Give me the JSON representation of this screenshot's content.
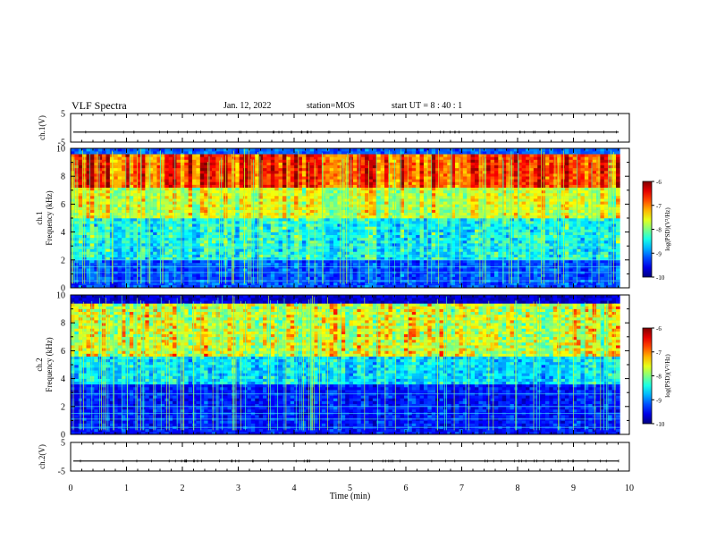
{
  "header": {
    "title": "VLF Spectra",
    "date": "Jan. 12, 2022",
    "station": "station=MOS",
    "start": "start UT =  8 : 40 : 1"
  },
  "chart_data": [
    {
      "type": "line",
      "panel": "waveform-ch1",
      "ylabel": "ch.1(V)",
      "ylim": [
        -5,
        5
      ],
      "yticks": [
        "5",
        "-5"
      ],
      "series_baseline": -1.5
    },
    {
      "type": "heatmap",
      "panel": "spectrogram-ch1",
      "ylabel_line1": "ch.1",
      "ylabel_line2": "Frequency (kHz)",
      "ylim": [
        0,
        10
      ],
      "yticks": [
        "0",
        "2",
        "4",
        "6",
        "8",
        "10"
      ],
      "x_data_end_min": 9.83,
      "colorbar": {
        "label": "log(PSD)(V²/Hz)",
        "range": [
          -10,
          -6
        ],
        "ticks": [
          "-6",
          "-7",
          "-8",
          "-9",
          "-10"
        ]
      }
    },
    {
      "type": "heatmap",
      "panel": "spectrogram-ch2",
      "ylabel_line1": "ch.2",
      "ylabel_line2": "Frequency (kHz)",
      "ylim": [
        0,
        10
      ],
      "yticks": [
        "0",
        "2",
        "4",
        "6",
        "8",
        "10"
      ],
      "x_data_end_min": 9.83,
      "colorbar": {
        "label": "log(PSD)(V²/Hz)",
        "range": [
          -10,
          -6
        ],
        "ticks": [
          "-6",
          "-7",
          "-8",
          "-9",
          "-10"
        ]
      }
    },
    {
      "type": "line",
      "panel": "waveform-ch2",
      "ylabel": "ch.2(V)",
      "ylim": [
        -5,
        5
      ],
      "yticks": [
        "5",
        "-5"
      ],
      "series_baseline": -1.5
    }
  ],
  "xaxis": {
    "label": "Time (min)",
    "xlim": [
      0,
      10
    ],
    "ticks": [
      "0",
      "1",
      "2",
      "3",
      "4",
      "5",
      "6",
      "7",
      "8",
      "9",
      "10"
    ]
  }
}
